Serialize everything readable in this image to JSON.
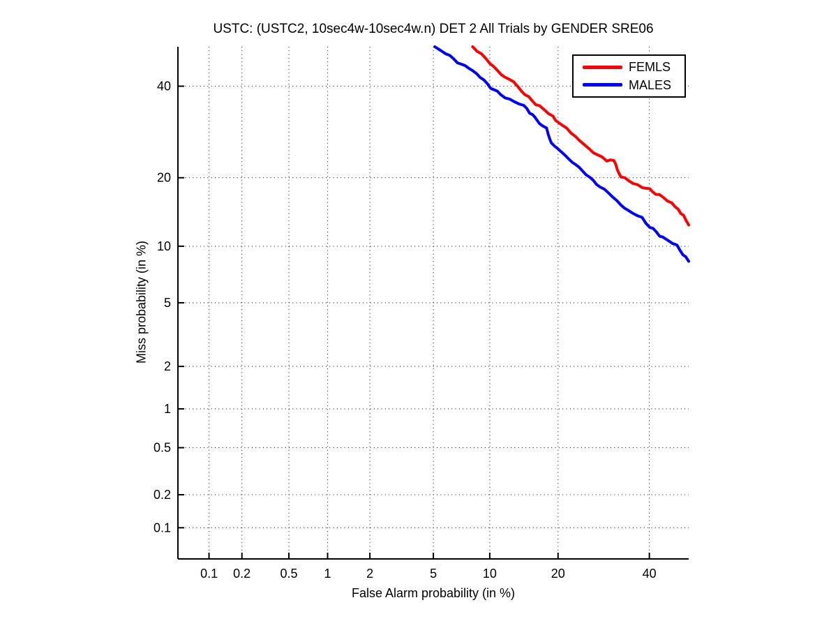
{
  "figure": {
    "background": "#ffffff",
    "text_color": "#000000",
    "grid_style": "dotted-black"
  },
  "chart_data": {
    "type": "line",
    "subtype": "DET curve (normal-deviate / probit scale on both axes)",
    "title": "USTC: (USTC2, 10sec4w-10sec4w.n) DET 2 All Trials by GENDER SRE06",
    "xlabel": "False Alarm probability (in %)",
    "ylabel": "Miss probability (in %)",
    "xlim_pct": [
      0.05,
      50
    ],
    "ylim_pct": [
      0.05,
      50
    ],
    "x_ticks_pct": [
      0.1,
      0.2,
      0.5,
      1,
      2,
      5,
      10,
      20,
      40
    ],
    "x_tick_labels": [
      "0.1",
      "0.2",
      "0.5",
      "1",
      "2",
      "5",
      "10",
      "20",
      "40"
    ],
    "y_ticks_pct": [
      0.1,
      0.2,
      0.5,
      1,
      2,
      5,
      10,
      20,
      40
    ],
    "y_tick_labels": [
      "0.1",
      "0.2",
      "0.5",
      "1",
      "2",
      "5",
      "10",
      "20",
      "40"
    ],
    "grid": "on",
    "legend_position": "top-right",
    "series": [
      {
        "name": "FEMLS",
        "color": "#ff0000",
        "points_fa_miss_pct": [
          [
            8.2,
            50.0
          ],
          [
            9.1,
            48.0
          ],
          [
            10.0,
            45.7
          ],
          [
            10.9,
            44.1
          ],
          [
            11.8,
            42.0
          ],
          [
            13.0,
            41.0
          ],
          [
            13.5,
            40.0
          ],
          [
            14.6,
            38.0
          ],
          [
            15.7,
            36.3
          ],
          [
            16.8,
            35.2
          ],
          [
            17.6,
            34.2
          ],
          [
            19.1,
            32.5
          ],
          [
            20.0,
            31.3
          ],
          [
            21.6,
            29.8
          ],
          [
            23.3,
            28.2
          ],
          [
            25.4,
            26.1
          ],
          [
            27.7,
            24.4
          ],
          [
            29.9,
            23.2
          ],
          [
            31.5,
            23.2
          ],
          [
            33.1,
            20.1
          ],
          [
            36.0,
            19.1
          ],
          [
            38.2,
            18.5
          ],
          [
            40.1,
            17.9
          ],
          [
            41.6,
            17.3
          ],
          [
            43.4,
            16.6
          ],
          [
            45.7,
            15.7
          ],
          [
            47.3,
            14.8
          ],
          [
            48.7,
            13.8
          ],
          [
            50.0,
            12.6
          ]
        ]
      },
      {
        "name": "MALES",
        "color": "#0000ff",
        "points_fa_miss_pct": [
          [
            5.1,
            50.0
          ],
          [
            5.6,
            48.9
          ],
          [
            6.5,
            46.8
          ],
          [
            7.5,
            45.0
          ],
          [
            8.6,
            43.2
          ],
          [
            10.1,
            39.7
          ],
          [
            11.3,
            38.0
          ],
          [
            13.0,
            36.3
          ],
          [
            14.4,
            35.3
          ],
          [
            16.2,
            32.2
          ],
          [
            18.0,
            29.8
          ],
          [
            18.8,
            26.8
          ],
          [
            20.0,
            25.6
          ],
          [
            22.0,
            23.5
          ],
          [
            24.0,
            21.9
          ],
          [
            26.2,
            20.0
          ],
          [
            28.4,
            18.4
          ],
          [
            30.4,
            17.2
          ],
          [
            33.1,
            15.6
          ],
          [
            34.8,
            14.5
          ],
          [
            38.2,
            13.5
          ],
          [
            40.1,
            12.4
          ],
          [
            43.4,
            11.0
          ],
          [
            47.0,
            10.0
          ],
          [
            50.0,
            8.4
          ]
        ]
      }
    ]
  }
}
